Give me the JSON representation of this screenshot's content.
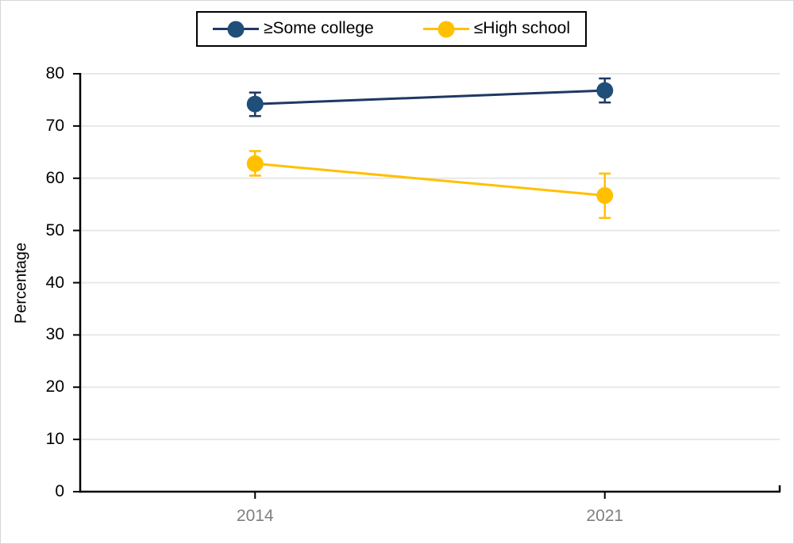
{
  "colors": {
    "some_college": "#1F4E79",
    "some_college_line": "#1F3864",
    "high_school": "#FFC000",
    "gridline": "#E8E8E8",
    "axis": "#000000",
    "x_label_gray": "#7F7F7F",
    "legend_border": "#000000",
    "figure_border": "#D6D6D6"
  },
  "chart_data": {
    "type": "line",
    "title": "",
    "xlabel": "",
    "ylabel": "Percentage",
    "categories": [
      "2014",
      "2021"
    ],
    "ylim": [
      0,
      80
    ],
    "ytick_step": 10,
    "ytick_labels": [
      "0",
      "10",
      "20",
      "30",
      "40",
      "50",
      "60",
      "70",
      "80"
    ],
    "grid": "horizontal",
    "legend_position": "top-center",
    "error_bars": "95% CI caps shown",
    "series": [
      {
        "name": "≥Some college",
        "color": "#1F4E79",
        "line_color": "#1F3864",
        "values": [
          74.2,
          76.8
        ],
        "ci_low": [
          71.9,
          74.5
        ],
        "ci_high": [
          76.4,
          79.1
        ]
      },
      {
        "name": "≤High school",
        "color": "#FFC000",
        "line_color": "#FFC000",
        "values": [
          62.8,
          56.7
        ],
        "ci_low": [
          60.5,
          52.4
        ],
        "ci_high": [
          65.2,
          60.9
        ]
      }
    ]
  }
}
